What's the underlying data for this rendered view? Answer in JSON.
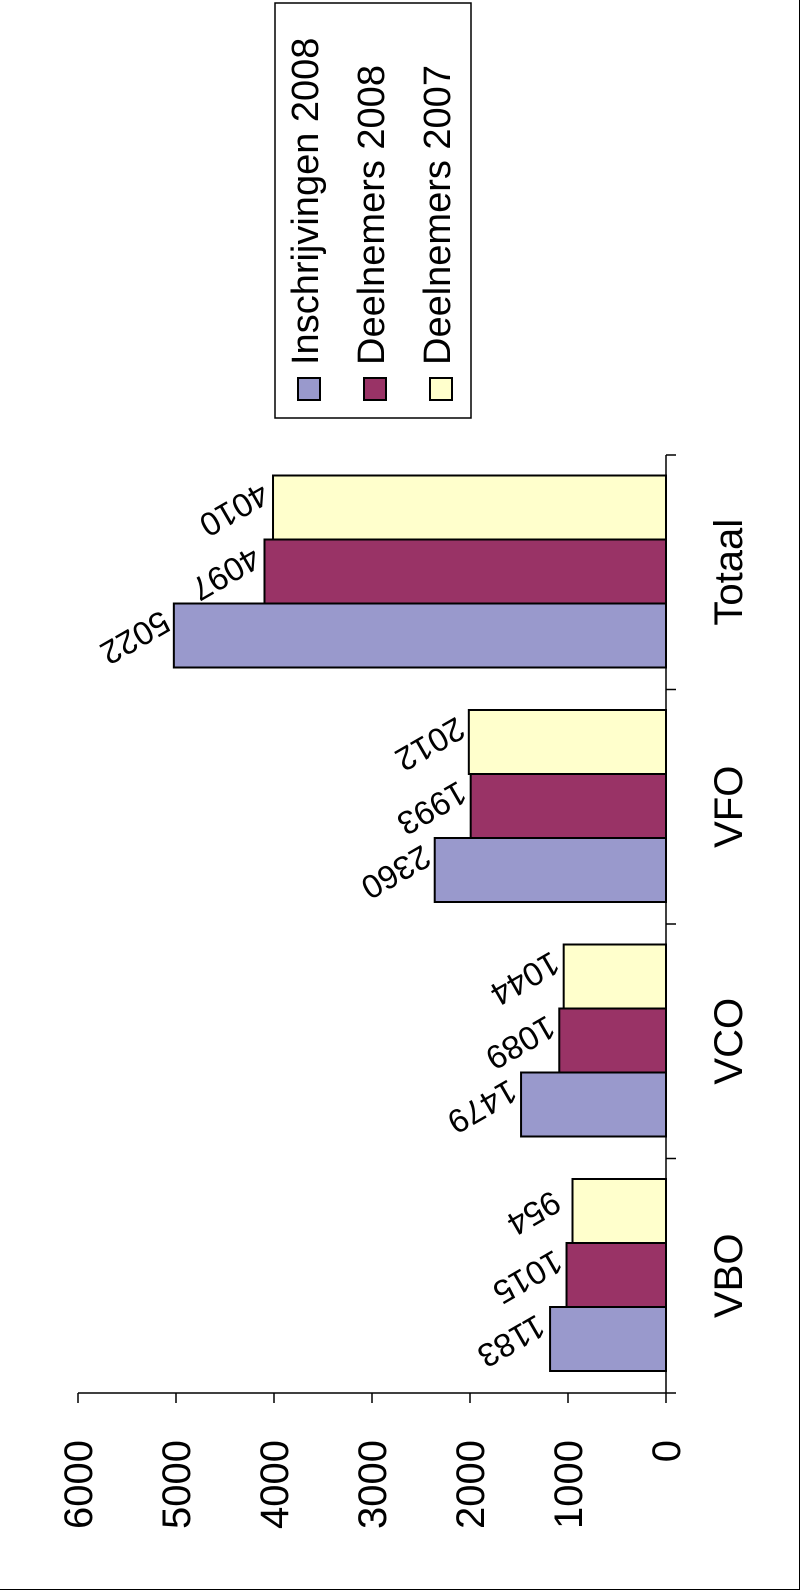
{
  "chart_data": {
    "type": "bar",
    "orientation": "rotated-90",
    "categories": [
      "VBO",
      "VCO",
      "VFO",
      "Totaal"
    ],
    "series": [
      {
        "name": "Inschrijvingen 2008",
        "values": [
          1183,
          1479,
          2360,
          5022
        ],
        "color": "#9999cc"
      },
      {
        "name": "Deelnemers 2008",
        "values": [
          1015,
          1089,
          1993,
          4097
        ],
        "color": "#993366"
      },
      {
        "name": "Deelnemers 2007",
        "values": [
          954,
          1044,
          2012,
          4010
        ],
        "color": "#ffffcc"
      }
    ],
    "value_axis": {
      "min": 0,
      "max": 6000,
      "ticks": [
        0,
        1000,
        2000,
        3000,
        4000,
        5000,
        6000
      ]
    },
    "data_labels": true,
    "legend_position": "top-right",
    "title": "",
    "xlabel": "",
    "ylabel": "",
    "grid": false
  }
}
